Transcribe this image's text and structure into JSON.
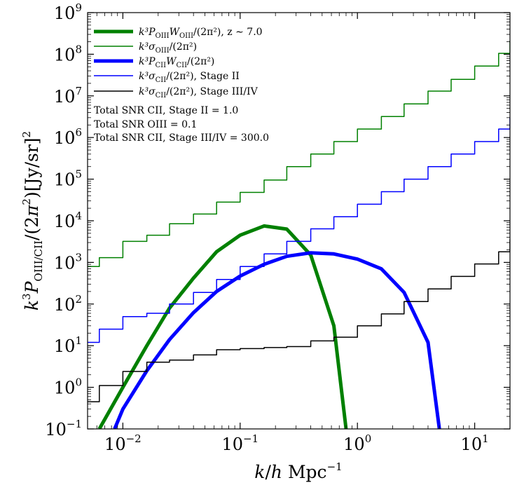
{
  "chart_data": {
    "type": "line",
    "xscale": "log",
    "yscale": "log",
    "xlim": [
      0.005,
      20
    ],
    "ylim": [
      0.1,
      1000000000
    ],
    "xlabel": "k/h Mpc⁻¹",
    "ylabel": "k³P_OIII/CII/(2π²)[Jy/sr]²",
    "x_ticks": [
      {
        "value": 0.01,
        "base": "10",
        "exp": "−2"
      },
      {
        "value": 0.1,
        "base": "10",
        "exp": "−1"
      },
      {
        "value": 1,
        "base": "10",
        "exp": "0"
      },
      {
        "value": 10,
        "base": "10",
        "exp": "1"
      }
    ],
    "y_ticks": [
      {
        "value": 0.1,
        "base": "10",
        "exp": "−1"
      },
      {
        "value": 1,
        "base": "10",
        "exp": "0"
      },
      {
        "value": 10,
        "base": "10",
        "exp": "1"
      },
      {
        "value": 100,
        "base": "10",
        "exp": "2"
      },
      {
        "value": 1000,
        "base": "10",
        "exp": "3"
      },
      {
        "value": 10000,
        "base": "10",
        "exp": "4"
      },
      {
        "value": 100000,
        "base": "10",
        "exp": "5"
      },
      {
        "value": 1000000,
        "base": "10",
        "exp": "6"
      },
      {
        "value": 10000000,
        "base": "10",
        "exp": "7"
      },
      {
        "value": 100000000,
        "base": "10",
        "exp": "8"
      },
      {
        "value": 1000000000,
        "base": "10",
        "exp": "9"
      }
    ],
    "legend_position": "upper-left",
    "series": [
      {
        "name": "k³P_OIII W_OIII/(2π²), z ~ 7.0",
        "style": "line",
        "color": "#008000",
        "width": 5,
        "x": [
          0.0063,
          0.01,
          0.016,
          0.025,
          0.04,
          0.063,
          0.1,
          0.16,
          0.25,
          0.4,
          0.63,
          0.8
        ],
        "y": [
          0.1,
          1.0,
          10,
          80,
          420,
          1800,
          4500,
          7500,
          6300,
          1500,
          30,
          0.1
        ]
      },
      {
        "name": "k³σ_OIII/(2π²)",
        "style": "step",
        "color": "#008000",
        "width": 1.5,
        "edges": [
          0.005,
          0.0063,
          0.01,
          0.016,
          0.025,
          0.04,
          0.063,
          0.1,
          0.16,
          0.25,
          0.4,
          0.63,
          1.0,
          1.6,
          2.5,
          4.0,
          6.3,
          10,
          16,
          20
        ],
        "y": [
          800,
          1300,
          3200,
          4500,
          8500,
          14500,
          28000,
          48000,
          95000,
          200000,
          400000,
          800000,
          1600000,
          3200000,
          6400000,
          13000000,
          25000000,
          52000000,
          105000000,
          210000000
        ]
      },
      {
        "name": "k³P_CII W_CII/(2π²)",
        "style": "line",
        "color": "#0000ff",
        "width": 5,
        "x": [
          0.0085,
          0.01,
          0.016,
          0.025,
          0.04,
          0.063,
          0.1,
          0.16,
          0.25,
          0.4,
          0.63,
          1.0,
          1.6,
          2.5,
          4.0,
          5.0
        ],
        "y": [
          0.1,
          0.3,
          2.5,
          14,
          62,
          200,
          470,
          900,
          1400,
          1700,
          1600,
          1200,
          700,
          190,
          12,
          0.1
        ]
      },
      {
        "name": "k³σ_CII/(2π²), Stage II",
        "style": "step",
        "color": "#0000ff",
        "width": 1.5,
        "edges": [
          0.005,
          0.0063,
          0.01,
          0.016,
          0.025,
          0.04,
          0.063,
          0.1,
          0.16,
          0.25,
          0.4,
          0.63,
          1.0,
          1.6,
          2.5,
          4.0,
          6.3,
          10,
          16,
          20
        ],
        "y": [
          12,
          25,
          50,
          60,
          100,
          190,
          390,
          800,
          1600,
          3200,
          6400,
          12500,
          25000,
          50000,
          100000,
          200000,
          400000,
          800000,
          1600000,
          3000000
        ]
      },
      {
        "name": "k³σ_CII/(2π²), Stage III/IV",
        "style": "step",
        "color": "#000000",
        "width": 1.5,
        "edges": [
          0.005,
          0.0063,
          0.01,
          0.016,
          0.025,
          0.04,
          0.063,
          0.1,
          0.16,
          0.25,
          0.4,
          0.63,
          1.0,
          1.6,
          2.5,
          4.0,
          6.3,
          10,
          16,
          20
        ],
        "y": [
          0.45,
          1.1,
          2.4,
          4.0,
          4.5,
          6.0,
          8.0,
          8.5,
          9.0,
          9.5,
          13.0,
          16.0,
          30,
          58,
          115,
          230,
          460,
          920,
          1800,
          3600
        ]
      }
    ],
    "annotations": [
      "Total SNR CII, Stage II = 1.0",
      "Total SNR OIII = 0.1",
      "Total SNR CII, Stage III/IV = 300.0"
    ],
    "legend_labels": [
      {
        "main": "k³P",
        "sub": "OIII",
        "main2": "W",
        "sub2": "OIII",
        "rest": "/(2π²), z ∼ 7.0"
      },
      {
        "main": "k³σ",
        "sub": "OIII",
        "main2": "",
        "sub2": "",
        "rest": "/(2π²)"
      },
      {
        "main": "k³P",
        "sub": "CII",
        "main2": "W",
        "sub2": "CII",
        "rest": "/(2π²)"
      },
      {
        "main": "k³σ",
        "sub": "CII",
        "main2": "",
        "sub2": "",
        "rest": "/(2π²), Stage II"
      },
      {
        "main": "k³σ",
        "sub": "CII",
        "main2": "",
        "sub2": "",
        "rest": "/(2π²), Stage III/IV"
      }
    ]
  }
}
